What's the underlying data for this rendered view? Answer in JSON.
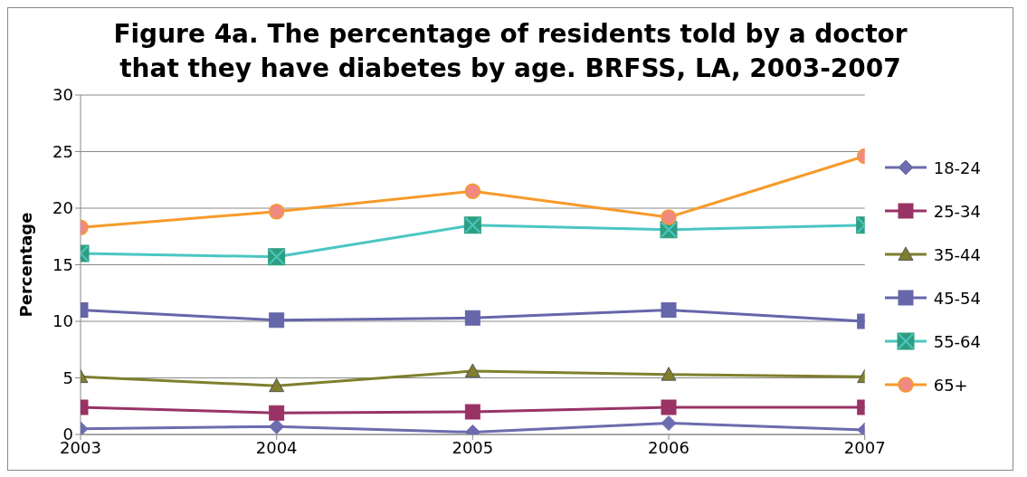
{
  "chart_data": {
    "type": "line",
    "title": "Figure 4a.  The percentage of residents  told by a doctor that they have diabetes by age. BRFSS, LA, 2003-2007",
    "ylabel": "Percentage",
    "x": [
      2003,
      2004,
      2005,
      2006,
      2007
    ],
    "xlim": [
      2003,
      2007
    ],
    "xticks": [
      2003,
      2004,
      2005,
      2006,
      2007
    ],
    "ylim": [
      0,
      30
    ],
    "yticks": [
      0,
      5,
      10,
      15,
      20,
      25,
      30
    ],
    "grid": "y",
    "legend": "right",
    "series": [
      {
        "name": "18-24",
        "color": "#6c6cae",
        "marker": "diamond",
        "values": [
          0.5,
          0.7,
          0.2,
          1.0,
          0.4
        ]
      },
      {
        "name": "25-34",
        "color": "#993366",
        "marker": "square",
        "values": [
          2.4,
          1.9,
          2.0,
          2.4,
          2.4
        ]
      },
      {
        "name": "35-44",
        "color": "#7f7f2e",
        "marker": "triangle",
        "values": [
          5.1,
          4.3,
          5.6,
          5.3,
          5.1
        ]
      },
      {
        "name": "45-54",
        "color": "#6666aa",
        "marker": "square",
        "values": [
          11.0,
          10.1,
          10.3,
          11.0,
          10.0
        ]
      },
      {
        "name": "55-64",
        "color": "#4bc6c2",
        "marker": "cross",
        "values": [
          16.0,
          15.7,
          18.5,
          18.1,
          18.5
        ]
      },
      {
        "name": "65+",
        "color": "#f79a2a",
        "marker": "circle",
        "values": [
          18.3,
          19.7,
          21.5,
          19.2,
          24.6
        ]
      }
    ]
  }
}
